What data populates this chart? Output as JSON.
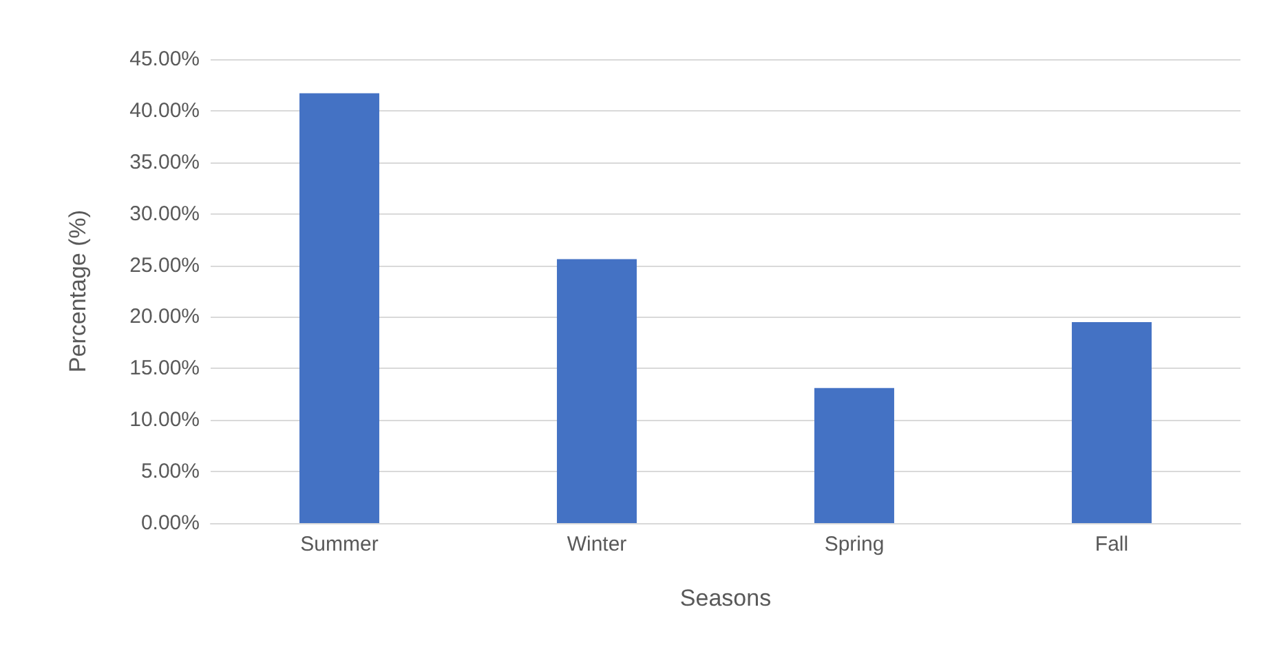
{
  "chart_data": {
    "type": "bar",
    "xlabel": "Seasons",
    "ylabel": "Percentage (%)",
    "categories": [
      "Summer",
      "Winter",
      "Spring",
      "Fall"
    ],
    "values": [
      41.7,
      25.6,
      13.1,
      19.5
    ],
    "color": "#4472c4",
    "ylim": [
      0,
      45
    ],
    "yticks": [
      {
        "value": 0,
        "label": "0.00%"
      },
      {
        "value": 5,
        "label": "5.00%"
      },
      {
        "value": 10,
        "label": "10.00%"
      },
      {
        "value": 15,
        "label": "15.00%"
      },
      {
        "value": 20,
        "label": "20.00%"
      },
      {
        "value": 25,
        "label": "25.00%"
      },
      {
        "value": 30,
        "label": "30.00%"
      },
      {
        "value": 35,
        "label": "35.00%"
      },
      {
        "value": 40,
        "label": "40.00%"
      },
      {
        "value": 45,
        "label": "45.00%"
      }
    ],
    "grid": "y"
  }
}
